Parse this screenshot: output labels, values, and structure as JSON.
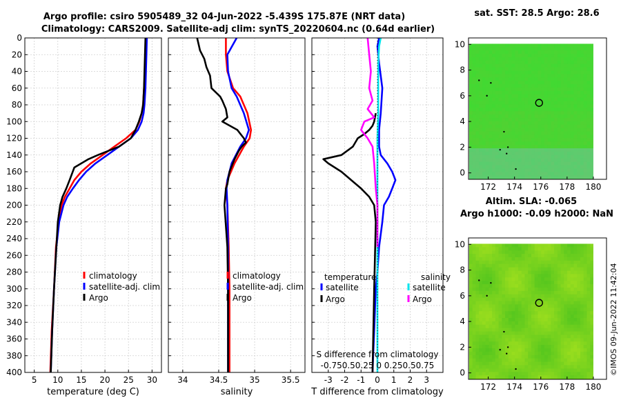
{
  "title": {
    "line1": "Argo profile: csiro 5905489_32 04-Jun-2022 -5.439S 175.87E (NRT data)",
    "line2": "Climatology: CARS2009. Satellite-adj clim: synTS_20220604.nc (0.64d earlier)"
  },
  "timestamp": "©IMOS 09-Jun-2022 11:42:04",
  "colors": {
    "climatology": "#ff0000",
    "satellite": "#0000ff",
    "argo": "#000000",
    "sal_satellite": "#00e5ee",
    "sal_argo": "#ff00ff",
    "map_bg": "#33cc33"
  },
  "chart_data": [
    {
      "type": "line",
      "name": "temperature-profile",
      "xlabel": "temperature (deg C)",
      "ylabel": "",
      "xlim": [
        3,
        32
      ],
      "ylim": [
        400,
        0
      ],
      "xticks": [
        5,
        10,
        15,
        20,
        25,
        30
      ],
      "yticks": [
        0,
        20,
        40,
        60,
        80,
        100,
        120,
        140,
        160,
        180,
        200,
        220,
        240,
        260,
        280,
        300,
        320,
        340,
        360,
        380,
        400
      ],
      "legend": [
        "climatology",
        "satellite-adj. clim",
        "Argo"
      ],
      "legend_position": "lower-right",
      "series": [
        {
          "name": "climatology",
          "color": "#ff0000",
          "x": [
            28.7,
            28.6,
            28.5,
            28.3,
            28.1,
            27.8,
            27.3,
            26.5,
            24.5,
            22.0,
            19.5,
            17.0,
            15.0,
            13.5,
            12.5,
            11.5,
            10.8,
            10.2,
            9.6,
            9.2,
            8.7,
            8.4
          ],
          "y": [
            0,
            20,
            40,
            60,
            80,
            90,
            100,
            110,
            120,
            130,
            140,
            150,
            160,
            170,
            180,
            190,
            200,
            220,
            250,
            300,
            350,
            400
          ]
        },
        {
          "name": "satellite-adj. clim",
          "color": "#0000ff",
          "x": [
            28.9,
            28.8,
            28.7,
            28.6,
            28.4,
            28.2,
            27.8,
            27.0,
            25.5,
            23.0,
            20.5,
            18.0,
            16.0,
            14.5,
            13.2,
            12.0,
            11.2,
            10.3,
            9.7,
            9.2,
            8.8,
            8.5
          ],
          "y": [
            0,
            20,
            40,
            60,
            80,
            90,
            100,
            110,
            120,
            130,
            140,
            150,
            160,
            170,
            180,
            190,
            200,
            220,
            250,
            300,
            350,
            400
          ]
        },
        {
          "name": "Argo",
          "color": "#000000",
          "x": [
            28.6,
            28.5,
            28.4,
            28.3,
            28.1,
            27.8,
            27.2,
            26.5,
            25.5,
            23.0,
            18.5,
            16.5,
            13.5,
            12.5,
            11.8,
            11.0,
            10.5,
            10.0,
            9.7,
            9.2,
            8.8,
            8.5
          ],
          "y": [
            0,
            20,
            40,
            60,
            80,
            90,
            100,
            110,
            120,
            130,
            140,
            145,
            155,
            170,
            180,
            190,
            200,
            220,
            250,
            300,
            350,
            400
          ]
        }
      ]
    },
    {
      "type": "line",
      "name": "salinity-profile",
      "xlabel": "salinity",
      "xlim": [
        33.8,
        35.7
      ],
      "ylim": [
        400,
        0
      ],
      "xticks": [
        34,
        34.5,
        35,
        35.5
      ],
      "xticklabels": [
        "34",
        "34.5",
        "35",
        "35.5"
      ],
      "legend": [
        "climatology",
        "satellite-adj. clim",
        "Argo"
      ],
      "legend_position": "lower-right",
      "series": [
        {
          "name": "climatology",
          "color": "#ff0000",
          "x": [
            34.6,
            34.6,
            34.62,
            34.7,
            34.8,
            34.9,
            34.95,
            34.93,
            34.85,
            34.72,
            34.62,
            34.6,
            34.62,
            34.64,
            34.65,
            34.65,
            34.65
          ],
          "y": [
            0,
            20,
            40,
            60,
            70,
            90,
            110,
            120,
            130,
            150,
            170,
            180,
            200,
            250,
            300,
            350,
            400
          ]
        },
        {
          "name": "satellite-adj. clim",
          "color": "#0000ff",
          "x": [
            34.75,
            34.62,
            34.63,
            34.68,
            34.75,
            34.85,
            34.92,
            34.88,
            34.8,
            34.68,
            34.62,
            34.61,
            34.62,
            34.63,
            34.63,
            34.63,
            34.63
          ],
          "y": [
            0,
            20,
            40,
            60,
            70,
            90,
            110,
            120,
            130,
            150,
            170,
            180,
            200,
            250,
            300,
            350,
            400
          ]
        },
        {
          "name": "Argo",
          "color": "#000000",
          "x": [
            34.2,
            34.24,
            34.3,
            34.33,
            34.38,
            34.4,
            34.52,
            34.55,
            34.6,
            34.62,
            34.55,
            34.76,
            34.85,
            34.88,
            34.82,
            34.78,
            34.72,
            34.65,
            34.62,
            34.6,
            34.58,
            34.62,
            34.63,
            34.63,
            34.63
          ],
          "y": [
            0,
            15,
            25,
            35,
            45,
            60,
            70,
            75,
            85,
            95,
            100,
            110,
            120,
            125,
            130,
            135,
            145,
            160,
            175,
            180,
            200,
            250,
            300,
            350,
            400
          ]
        }
      ]
    },
    {
      "type": "line",
      "name": "difference-profile",
      "xlabel": "T difference from climatology",
      "toplabel": "S difference from climatology",
      "top_ticklabels": "-0.750.50.25 0  0.250.50.75",
      "xlim": [
        -4,
        4
      ],
      "ylim": [
        400,
        0
      ],
      "xticks": [
        -3,
        -2,
        -1,
        0,
        1,
        2,
        3
      ],
      "legend_titles": [
        "temperature",
        "salinity"
      ],
      "legend": [
        "satellite",
        "Argo",
        "satellite",
        "Argo"
      ],
      "series": [
        {
          "name": "T satellite",
          "color": "#0000ff",
          "x": [
            0.1,
            0.0,
            0.1,
            0.3,
            0.2,
            0.1,
            0.1,
            0.2,
            0.6,
            0.9,
            1.1,
            0.9,
            0.7,
            0.4,
            0.3,
            0.1,
            0.0,
            -0.1,
            -0.2,
            -0.3
          ],
          "y": [
            0,
            10,
            30,
            60,
            90,
            110,
            130,
            140,
            150,
            160,
            170,
            180,
            190,
            200,
            220,
            250,
            280,
            300,
            350,
            400
          ]
        },
        {
          "name": "T Argo",
          "color": "#000000",
          "x": [
            -0.1,
            -0.2,
            -0.3,
            -0.5,
            -0.8,
            -1.2,
            -1.5,
            -2.2,
            -3.3,
            -3.0,
            -2.2,
            -1.6,
            -1.0,
            -0.5,
            -0.2,
            -0.1,
            -0.2,
            -0.3
          ],
          "y": [
            90,
            100,
            105,
            110,
            115,
            120,
            130,
            140,
            145,
            150,
            160,
            170,
            180,
            190,
            200,
            220,
            300,
            400
          ]
        },
        {
          "name": "S satellite",
          "color": "#00e5ee",
          "x": [
            0.2,
            0.1,
            0.05,
            0.05,
            0.05,
            0.0,
            0.0,
            0.0,
            0.0,
            0.0,
            0.0,
            0.0,
            0.0
          ],
          "y": [
            0,
            10,
            30,
            60,
            90,
            120,
            150,
            180,
            200,
            250,
            300,
            350,
            400
          ]
        },
        {
          "name": "S Argo",
          "color": "#ff00ff",
          "x": [
            -0.6,
            -0.5,
            -0.4,
            -0.5,
            -0.3,
            -0.6,
            -0.4,
            -0.2,
            -0.8,
            -1.0,
            -0.6,
            -0.3,
            -0.2,
            -0.1,
            0.0,
            0.0
          ],
          "y": [
            0,
            20,
            40,
            60,
            75,
            85,
            90,
            95,
            100,
            110,
            120,
            130,
            150,
            180,
            200,
            250
          ]
        }
      ]
    },
    {
      "type": "heatmap",
      "name": "sst-map",
      "title": "sat. SST: 28.5 Argo: 28.6",
      "xlim": [
        170.5,
        181
      ],
      "ylim": [
        -0.5,
        10.5
      ],
      "xticks": [
        172,
        174,
        176,
        178,
        180
      ],
      "yticks": [
        0,
        2,
        4,
        6,
        8,
        10
      ],
      "marker": {
        "x": 175.87,
        "y": 5.45
      }
    },
    {
      "type": "heatmap",
      "name": "sla-map",
      "title": "Altim. SLA: -0.065",
      "subtitle": "Argo h1000: -0.09 h2000: NaN",
      "xlim": [
        170.5,
        181
      ],
      "ylim": [
        -0.5,
        10.5
      ],
      "xticks": [
        172,
        174,
        176,
        178,
        180
      ],
      "yticks": [
        0,
        2,
        4,
        6,
        8,
        10
      ],
      "marker": {
        "x": 175.87,
        "y": 5.45
      }
    }
  ]
}
